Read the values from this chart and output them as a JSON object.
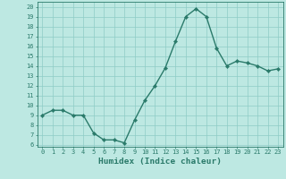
{
  "x": [
    0,
    1,
    2,
    3,
    4,
    5,
    6,
    7,
    8,
    9,
    10,
    11,
    12,
    13,
    14,
    15,
    16,
    17,
    18,
    19,
    20,
    21,
    22,
    23
  ],
  "y": [
    9,
    9.5,
    9.5,
    9,
    9,
    7.2,
    6.5,
    6.5,
    6.2,
    8.5,
    10.5,
    12,
    13.8,
    16.5,
    19,
    19.8,
    19,
    15.8,
    14,
    14.5,
    14.3,
    14,
    13.5,
    13.7
  ],
  "line_color": "#2a7a6a",
  "marker": "D",
  "marker_size": 2.2,
  "line_width": 1.0,
  "bg_color": "#bde8e2",
  "grid_color": "#8eccc6",
  "xlabel": "Humidex (Indice chaleur)",
  "xlim": [
    -0.5,
    23.5
  ],
  "ylim": [
    5.8,
    20.5
  ],
  "yticks": [
    6,
    7,
    8,
    9,
    10,
    11,
    12,
    13,
    14,
    15,
    16,
    17,
    18,
    19,
    20
  ],
  "xticks": [
    0,
    1,
    2,
    3,
    4,
    5,
    6,
    7,
    8,
    9,
    10,
    11,
    12,
    13,
    14,
    15,
    16,
    17,
    18,
    19,
    20,
    21,
    22,
    23
  ],
  "xtick_labels": [
    "0",
    "1",
    "2",
    "3",
    "4",
    "5",
    "6",
    "7",
    "8",
    "9",
    "10",
    "11",
    "12",
    "13",
    "14",
    "15",
    "16",
    "17",
    "18",
    "19",
    "20",
    "21",
    "22",
    "23"
  ],
  "tick_color": "#2a7a6a",
  "label_color": "#2a7a6a",
  "tick_fontsize": 5.0,
  "xlabel_fontsize": 6.8
}
